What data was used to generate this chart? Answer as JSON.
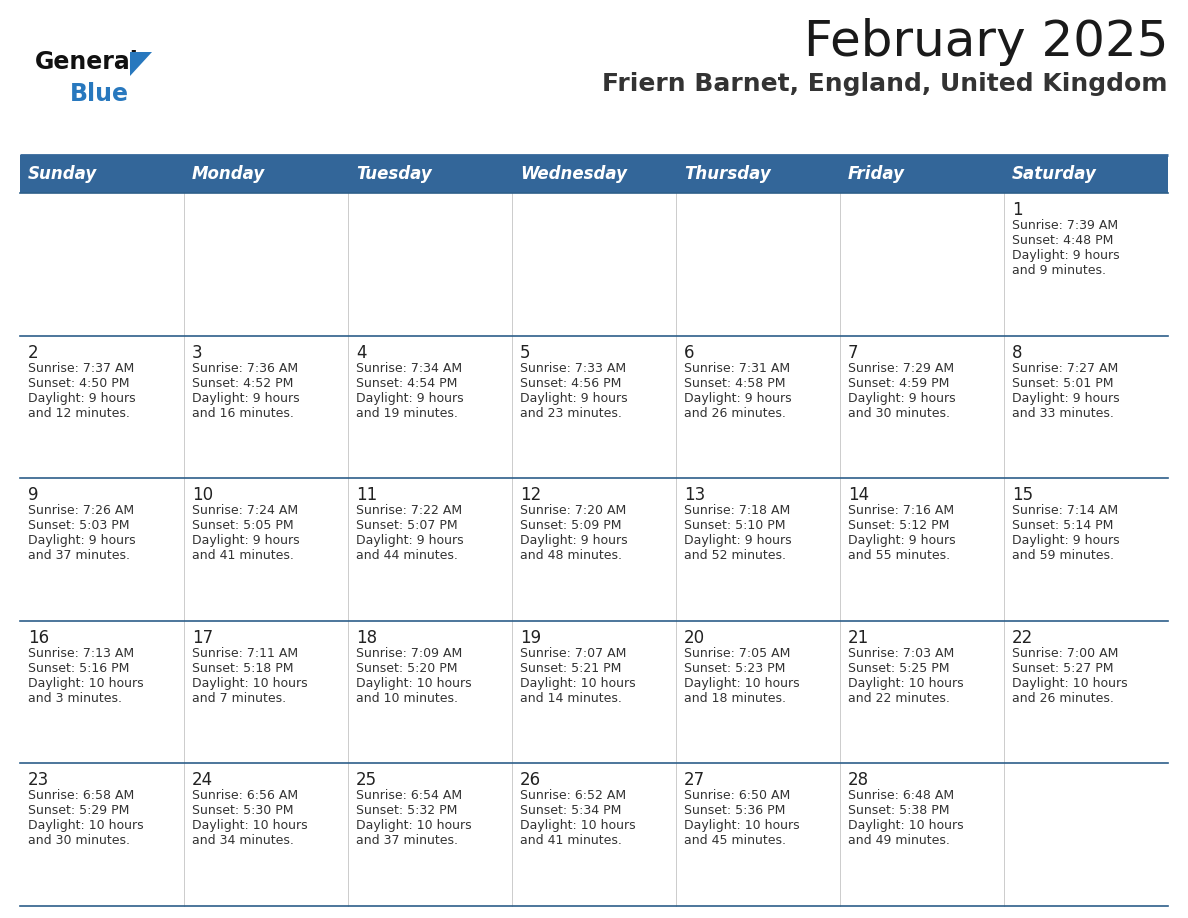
{
  "title": "February 2025",
  "subtitle": "Friern Barnet, England, United Kingdom",
  "header_bg": "#336699",
  "header_text_color": "#ffffff",
  "day_names": [
    "Sunday",
    "Monday",
    "Tuesday",
    "Wednesday",
    "Thursday",
    "Friday",
    "Saturday"
  ],
  "title_color": "#1a1a1a",
  "subtitle_color": "#333333",
  "cell_bg_white": "#ffffff",
  "cell_bg_gray": "#f0f0f0",
  "day_num_color": "#222222",
  "info_color": "#333333",
  "border_color": "#2d5f8a",
  "weeks": [
    [
      null,
      null,
      null,
      null,
      null,
      null,
      1
    ],
    [
      2,
      3,
      4,
      5,
      6,
      7,
      8
    ],
    [
      9,
      10,
      11,
      12,
      13,
      14,
      15
    ],
    [
      16,
      17,
      18,
      19,
      20,
      21,
      22
    ],
    [
      23,
      24,
      25,
      26,
      27,
      28,
      null
    ]
  ],
  "day_data": {
    "1": {
      "sunrise": "7:39 AM",
      "sunset": "4:48 PM",
      "daylight": "9 hours and 9 minutes"
    },
    "2": {
      "sunrise": "7:37 AM",
      "sunset": "4:50 PM",
      "daylight": "9 hours and 12 minutes"
    },
    "3": {
      "sunrise": "7:36 AM",
      "sunset": "4:52 PM",
      "daylight": "9 hours and 16 minutes"
    },
    "4": {
      "sunrise": "7:34 AM",
      "sunset": "4:54 PM",
      "daylight": "9 hours and 19 minutes"
    },
    "5": {
      "sunrise": "7:33 AM",
      "sunset": "4:56 PM",
      "daylight": "9 hours and 23 minutes"
    },
    "6": {
      "sunrise": "7:31 AM",
      "sunset": "4:58 PM",
      "daylight": "9 hours and 26 minutes"
    },
    "7": {
      "sunrise": "7:29 AM",
      "sunset": "4:59 PM",
      "daylight": "9 hours and 30 minutes"
    },
    "8": {
      "sunrise": "7:27 AM",
      "sunset": "5:01 PM",
      "daylight": "9 hours and 33 minutes"
    },
    "9": {
      "sunrise": "7:26 AM",
      "sunset": "5:03 PM",
      "daylight": "9 hours and 37 minutes"
    },
    "10": {
      "sunrise": "7:24 AM",
      "sunset": "5:05 PM",
      "daylight": "9 hours and 41 minutes"
    },
    "11": {
      "sunrise": "7:22 AM",
      "sunset": "5:07 PM",
      "daylight": "9 hours and 44 minutes"
    },
    "12": {
      "sunrise": "7:20 AM",
      "sunset": "5:09 PM",
      "daylight": "9 hours and 48 minutes"
    },
    "13": {
      "sunrise": "7:18 AM",
      "sunset": "5:10 PM",
      "daylight": "9 hours and 52 minutes"
    },
    "14": {
      "sunrise": "7:16 AM",
      "sunset": "5:12 PM",
      "daylight": "9 hours and 55 minutes"
    },
    "15": {
      "sunrise": "7:14 AM",
      "sunset": "5:14 PM",
      "daylight": "9 hours and 59 minutes"
    },
    "16": {
      "sunrise": "7:13 AM",
      "sunset": "5:16 PM",
      "daylight": "10 hours and 3 minutes"
    },
    "17": {
      "sunrise": "7:11 AM",
      "sunset": "5:18 PM",
      "daylight": "10 hours and 7 minutes"
    },
    "18": {
      "sunrise": "7:09 AM",
      "sunset": "5:20 PM",
      "daylight": "10 hours and 10 minutes"
    },
    "19": {
      "sunrise": "7:07 AM",
      "sunset": "5:21 PM",
      "daylight": "10 hours and 14 minutes"
    },
    "20": {
      "sunrise": "7:05 AM",
      "sunset": "5:23 PM",
      "daylight": "10 hours and 18 minutes"
    },
    "21": {
      "sunrise": "7:03 AM",
      "sunset": "5:25 PM",
      "daylight": "10 hours and 22 minutes"
    },
    "22": {
      "sunrise": "7:00 AM",
      "sunset": "5:27 PM",
      "daylight": "10 hours and 26 minutes"
    },
    "23": {
      "sunrise": "6:58 AM",
      "sunset": "5:29 PM",
      "daylight": "10 hours and 30 minutes"
    },
    "24": {
      "sunrise": "6:56 AM",
      "sunset": "5:30 PM",
      "daylight": "10 hours and 34 minutes"
    },
    "25": {
      "sunrise": "6:54 AM",
      "sunset": "5:32 PM",
      "daylight": "10 hours and 37 minutes"
    },
    "26": {
      "sunrise": "6:52 AM",
      "sunset": "5:34 PM",
      "daylight": "10 hours and 41 minutes"
    },
    "27": {
      "sunrise": "6:50 AM",
      "sunset": "5:36 PM",
      "daylight": "10 hours and 45 minutes"
    },
    "28": {
      "sunrise": "6:48 AM",
      "sunset": "5:38 PM",
      "daylight": "10 hours and 49 minutes"
    }
  },
  "logo_general_color": "#111111",
  "logo_blue_color": "#2878be",
  "title_fontsize": 36,
  "subtitle_fontsize": 18,
  "header_fontsize": 12,
  "daynum_fontsize": 12,
  "info_fontsize": 9
}
